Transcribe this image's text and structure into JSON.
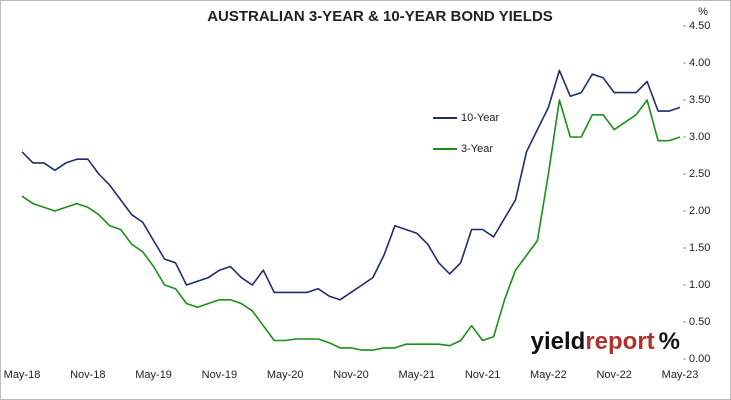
{
  "chart_data": {
    "type": "line",
    "title": "AUSTRALIAN 3-YEAR & 10-YEAR BOND YIELDS",
    "y_unit": "%",
    "watermark": [
      "yield",
      "report",
      "%"
    ],
    "categories": [
      "May-18",
      null,
      null,
      null,
      null,
      null,
      "Nov-18",
      null,
      null,
      null,
      null,
      null,
      "May-19",
      null,
      null,
      null,
      null,
      null,
      "Nov-19",
      null,
      null,
      null,
      null,
      null,
      "May-20",
      null,
      null,
      null,
      null,
      null,
      "Nov-20",
      null,
      null,
      null,
      null,
      null,
      "May-21",
      null,
      null,
      null,
      null,
      null,
      "Nov-21",
      null,
      null,
      null,
      null,
      null,
      "May-22",
      null,
      null,
      null,
      null,
      null,
      "Nov-22",
      null,
      null,
      null,
      null,
      null,
      "May-23"
    ],
    "series": [
      {
        "name": "10-Year",
        "color": "#1f2d6b",
        "values": [
          2.8,
          2.65,
          2.65,
          2.55,
          2.65,
          2.7,
          2.7,
          2.5,
          2.35,
          2.15,
          1.95,
          1.85,
          1.6,
          1.35,
          1.3,
          1.0,
          1.05,
          1.1,
          1.2,
          1.25,
          1.1,
          1.0,
          1.2,
          0.9,
          0.9,
          0.9,
          0.9,
          0.95,
          0.85,
          0.8,
          0.9,
          1.0,
          1.1,
          1.4,
          1.8,
          1.75,
          1.7,
          1.55,
          1.3,
          1.15,
          1.3,
          1.75,
          1.75,
          1.65,
          1.9,
          2.15,
          2.8,
          3.1,
          3.4,
          3.9,
          3.55,
          3.6,
          3.85,
          3.8,
          3.6,
          3.6,
          3.6,
          3.75,
          3.35,
          3.35,
          3.4
        ]
      },
      {
        "name": "3-Year",
        "color": "#1a8f1a",
        "values": [
          2.2,
          2.1,
          2.05,
          2.0,
          2.05,
          2.1,
          2.05,
          1.95,
          1.8,
          1.75,
          1.55,
          1.45,
          1.25,
          1.0,
          0.95,
          0.75,
          0.7,
          0.75,
          0.8,
          0.8,
          0.75,
          0.65,
          0.45,
          0.25,
          0.25,
          0.27,
          0.27,
          0.27,
          0.22,
          0.15,
          0.15,
          0.12,
          0.12,
          0.15,
          0.15,
          0.2,
          0.2,
          0.2,
          0.2,
          0.18,
          0.25,
          0.45,
          0.25,
          0.3,
          0.8,
          1.2,
          1.4,
          1.6,
          2.5,
          3.5,
          3.0,
          3.0,
          3.3,
          3.3,
          3.1,
          3.2,
          3.3,
          3.5,
          2.95,
          2.95,
          3.0
        ]
      }
    ],
    "ylim": [
      0,
      4.5
    ],
    "yticks": [
      {
        "value": 0,
        "label": "0.00"
      },
      {
        "value": 0.5,
        "label": "0.50"
      },
      {
        "value": 1,
        "label": "1.00"
      },
      {
        "value": 1.5,
        "label": "1.50"
      },
      {
        "value": 2,
        "label": "2.00"
      },
      {
        "value": 2.5,
        "label": "2.50"
      },
      {
        "value": 3,
        "label": "3.00"
      },
      {
        "value": 3.5,
        "label": "3.50"
      },
      {
        "value": 4,
        "label": "4.00"
      },
      {
        "value": 4.5,
        "label": "4.50"
      }
    ],
    "grid": false
  }
}
